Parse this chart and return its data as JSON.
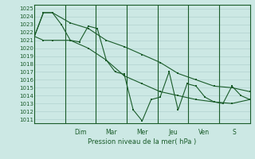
{
  "background_color": "#cce8e4",
  "grid_color": "#aaccca",
  "line_color": "#1a5c2a",
  "spine_color": "#1a5c2a",
  "ylim": [
    1010.5,
    1025.5
  ],
  "yticks": [
    1011,
    1012,
    1013,
    1014,
    1015,
    1016,
    1017,
    1018,
    1019,
    1020,
    1021,
    1022,
    1023,
    1024,
    1025
  ],
  "xlabel": "Pression niveau de la mer( hPa )",
  "day_labels": [
    "Dim",
    "Mar",
    "Mer",
    "Jeu",
    "Ven",
    "S"
  ],
  "day_positions": [
    0.285,
    0.428,
    0.571,
    0.714,
    0.857,
    1.0
  ],
  "xlim": [
    0,
    12
  ],
  "main_x": [
    0,
    0.5,
    1.0,
    1.5,
    2.0,
    2.5,
    3.0,
    3.5,
    4.0,
    4.5,
    5.0,
    5.5,
    6.0,
    6.5,
    7.0,
    7.5,
    8.0,
    8.5,
    9.0,
    9.5,
    10.0,
    10.5,
    11.0,
    11.5,
    12.0
  ],
  "main_y": [
    1021.5,
    1024.5,
    1024.5,
    1023.0,
    1021.0,
    1020.8,
    1022.8,
    1022.5,
    1018.5,
    1017.0,
    1016.7,
    1012.2,
    1010.8,
    1013.5,
    1013.8,
    1017.0,
    1012.2,
    1015.5,
    1015.2,
    1013.8,
    1013.2,
    1013.0,
    1015.2,
    1014.0,
    1013.5
  ],
  "upper_x": [
    0,
    0.5,
    1.0,
    2.0,
    3.0,
    4.0,
    5.0,
    6.0,
    7.0,
    8.0,
    9.0,
    10.0,
    11.0,
    12.0
  ],
  "upper_y": [
    1021.5,
    1024.5,
    1024.5,
    1023.2,
    1022.5,
    1021.0,
    1020.2,
    1019.2,
    1018.2,
    1016.8,
    1016.0,
    1015.2,
    1015.0,
    1014.5
  ],
  "lower_x": [
    0,
    0.5,
    1.0,
    2.0,
    3.0,
    4.0,
    5.0,
    6.0,
    7.0,
    8.0,
    9.0,
    10.0,
    11.0,
    12.0
  ],
  "lower_y": [
    1021.5,
    1021.0,
    1021.0,
    1021.0,
    1020.0,
    1018.5,
    1016.5,
    1015.5,
    1014.5,
    1014.0,
    1013.5,
    1013.2,
    1013.0,
    1013.5
  ]
}
